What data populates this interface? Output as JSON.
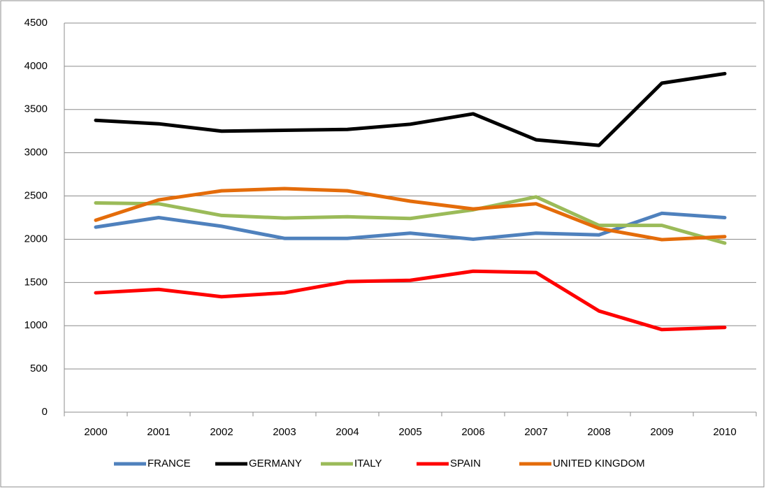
{
  "chart_data": {
    "type": "line",
    "categories": [
      "2000",
      "2001",
      "2002",
      "2003",
      "2004",
      "2005",
      "2006",
      "2007",
      "2008",
      "2009",
      "2010"
    ],
    "series": [
      {
        "name": "FRANCE",
        "color": "#4f81bd",
        "values": [
          2140,
          2250,
          2150,
          2010,
          2010,
          2070,
          2000,
          2070,
          2050,
          2300,
          2250
        ]
      },
      {
        "name": "GERMANY",
        "color": "#000000",
        "values": [
          3375,
          3335,
          3250,
          3260,
          3270,
          3330,
          3450,
          3150,
          3085,
          3805,
          3915
        ]
      },
      {
        "name": "ITALY",
        "color": "#9bbb59",
        "values": [
          2420,
          2410,
          2275,
          2245,
          2260,
          2240,
          2340,
          2490,
          2160,
          2160,
          1955
        ]
      },
      {
        "name": "SPAIN",
        "color": "#ff0000",
        "values": [
          1380,
          1420,
          1335,
          1380,
          1510,
          1525,
          1630,
          1615,
          1170,
          955,
          980
        ]
      },
      {
        "name": "UNITED KINGDOM",
        "color": "#e46c0a",
        "values": [
          2220,
          2455,
          2560,
          2585,
          2560,
          2440,
          2350,
          2410,
          2125,
          1995,
          2030
        ]
      }
    ],
    "ylim": [
      0,
      4500
    ],
    "yticks": [
      0,
      500,
      1000,
      1500,
      2000,
      2500,
      3000,
      3500,
      4000,
      4500
    ],
    "grid": true,
    "legend": "bottom"
  }
}
